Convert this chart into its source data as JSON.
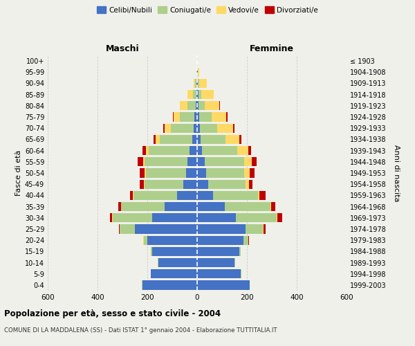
{
  "age_groups": [
    "0-4",
    "5-9",
    "10-14",
    "15-19",
    "20-24",
    "25-29",
    "30-34",
    "35-39",
    "40-44",
    "45-49",
    "50-54",
    "55-59",
    "60-64",
    "65-69",
    "70-74",
    "75-79",
    "80-84",
    "85-89",
    "90-94",
    "95-99",
    "100+"
  ],
  "birth_years": [
    "1999-2003",
    "1994-1998",
    "1989-1993",
    "1984-1988",
    "1979-1983",
    "1974-1978",
    "1969-1973",
    "1964-1968",
    "1959-1963",
    "1954-1958",
    "1949-1953",
    "1944-1948",
    "1939-1943",
    "1934-1938",
    "1929-1933",
    "1924-1928",
    "1919-1923",
    "1914-1918",
    "1909-1913",
    "1904-1908",
    "≤ 1903"
  ],
  "maschi": {
    "celibi": [
      220,
      185,
      155,
      180,
      200,
      250,
      180,
      130,
      80,
      55,
      45,
      40,
      30,
      20,
      15,
      10,
      5,
      3,
      2,
      1,
      0
    ],
    "coniugati": [
      2,
      2,
      3,
      5,
      15,
      60,
      160,
      175,
      175,
      155,
      160,
      170,
      165,
      130,
      90,
      60,
      35,
      15,
      5,
      1,
      0
    ],
    "vedovi": [
      0,
      0,
      0,
      1,
      1,
      1,
      1,
      1,
      2,
      3,
      5,
      8,
      10,
      18,
      25,
      25,
      30,
      20,
      8,
      1,
      0
    ],
    "divorziati": [
      0,
      0,
      0,
      0,
      1,
      2,
      8,
      10,
      12,
      18,
      20,
      20,
      15,
      8,
      5,
      2,
      0,
      0,
      0,
      0,
      0
    ]
  },
  "femmine": {
    "nubili": [
      210,
      175,
      150,
      170,
      185,
      195,
      155,
      110,
      65,
      45,
      35,
      30,
      20,
      15,
      10,
      8,
      5,
      5,
      3,
      2,
      0
    ],
    "coniugate": [
      2,
      2,
      3,
      5,
      20,
      70,
      165,
      185,
      180,
      150,
      155,
      160,
      140,
      100,
      70,
      50,
      25,
      12,
      5,
      1,
      0
    ],
    "vedove": [
      0,
      0,
      0,
      0,
      1,
      1,
      2,
      3,
      5,
      12,
      20,
      30,
      45,
      55,
      65,
      60,
      60,
      50,
      30,
      4,
      0
    ],
    "divorziate": [
      0,
      0,
      0,
      1,
      2,
      10,
      20,
      15,
      25,
      15,
      20,
      20,
      12,
      8,
      5,
      3,
      2,
      1,
      0,
      0,
      0
    ]
  },
  "colors": {
    "celibi": "#4472C4",
    "coniugati": "#AECF8B",
    "vedovi": "#FFD966",
    "divorziati": "#C00000"
  },
  "title": "Popolazione per età, sesso e stato civile - 2004",
  "subtitle": "COMUNE DI LA MADDALENA (SS) - Dati ISTAT 1° gennaio 2004 - Elaborazione TUTTITALIA.IT",
  "xlabel_left": "Maschi",
  "xlabel_right": "Femmine",
  "ylabel_left": "Fasce di età",
  "ylabel_right": "Anni di nascita",
  "xlim": 600,
  "background_color": "#f0f0eb",
  "grid_color": "#cccccc"
}
